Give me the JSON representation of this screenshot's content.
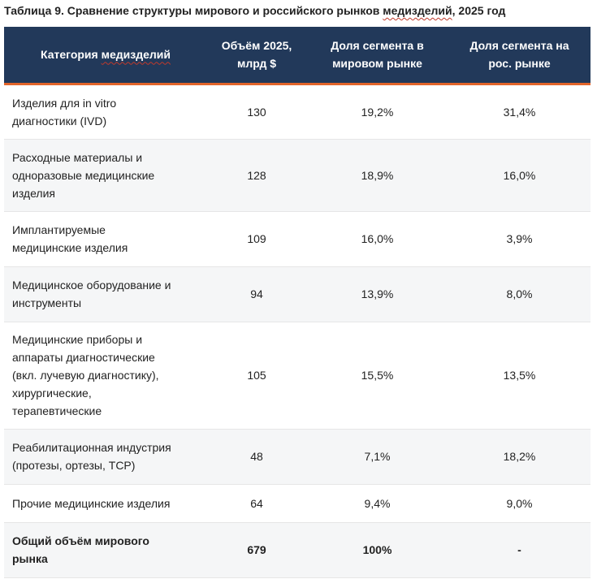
{
  "caption": {
    "prefix": "Таблица 9. Сравнение структуры мирового и российского рынков ",
    "squiggle": "медизделий",
    "suffix": ", 2025 год"
  },
  "header": {
    "col1_prefix": "Категория ",
    "col1_squiggle": "медизделий",
    "col2_line1": "Объём 2025,",
    "col2_line2": "млрд $",
    "col3_line1": "Доля сегмента в",
    "col3_line2": "мировом рынке",
    "col4_line1": "Доля сегмента на",
    "col4_line2": "рос. рынке"
  },
  "rows": [
    {
      "name_lines": [
        "Изделия для in vitro",
        "диагностики (IVD)"
      ],
      "volume": "130",
      "world_share": "19,2%",
      "ru_share": "31,4%"
    },
    {
      "name_lines": [
        "Расходные материалы и",
        "одноразовые медицинские",
        "изделия"
      ],
      "volume": "128",
      "world_share": "18,9%",
      "ru_share": "16,0%"
    },
    {
      "name_lines": [
        "Имплантируемые",
        "медицинские изделия"
      ],
      "volume": "109",
      "world_share": "16,0%",
      "ru_share": "3,9%"
    },
    {
      "name_lines": [
        "Медицинское оборудование и",
        "инструменты"
      ],
      "volume": "94",
      "world_share": "13,9%",
      "ru_share": "8,0%"
    },
    {
      "name_lines": [
        "Медицинские приборы и",
        "аппараты диагностические",
        "(вкл. лучевую диагностику),",
        "хирургические,",
        "терапевтические"
      ],
      "volume": "105",
      "world_share": "15,5%",
      "ru_share": "13,5%"
    },
    {
      "name_lines": [
        "Реабилитационная индустрия",
        "(протезы, ортезы, ТСР)"
      ],
      "volume": "48",
      "world_share": "7,1%",
      "ru_share": "18,2%"
    },
    {
      "name_lines": [
        "Прочие медицинские изделия"
      ],
      "volume": "64",
      "world_share": "9,4%",
      "ru_share": "9,0%"
    }
  ],
  "total": {
    "name_lines": [
      "Общий объём мирового",
      "рынка"
    ],
    "volume": "679",
    "world_share": "100%",
    "ru_share": "-"
  }
}
